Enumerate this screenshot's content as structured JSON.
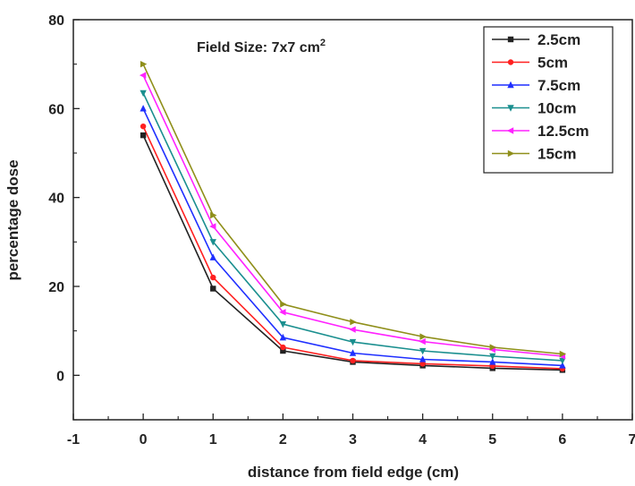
{
  "chart_data": {
    "type": "line",
    "annotation": {
      "text": "Field Size: 7x7 cm",
      "superscript": "2"
    },
    "xlabel": "distance from field edge (cm)",
    "ylabel": "percentage dose",
    "xlim": [
      -1,
      7
    ],
    "ylim": [
      -10,
      80
    ],
    "xticks": [
      -1,
      0,
      1,
      2,
      3,
      4,
      5,
      6,
      7
    ],
    "yticks": [
      0,
      20,
      40,
      60,
      80
    ],
    "grid": false,
    "legend_position": "top-right",
    "x": [
      0,
      1,
      2,
      3,
      4,
      5,
      6
    ],
    "series": [
      {
        "name": "2.5cm",
        "color": "#222222",
        "marker": "square",
        "values": [
          54,
          19.5,
          5.5,
          3.0,
          2.2,
          1.6,
          1.2
        ]
      },
      {
        "name": "5cm",
        "color": "#ff2020",
        "marker": "circle",
        "values": [
          56,
          22,
          6.3,
          3.3,
          2.6,
          2.1,
          1.5
        ]
      },
      {
        "name": "7.5cm",
        "color": "#1f2fff",
        "marker": "triangle-up",
        "values": [
          60,
          26.5,
          8.5,
          5.0,
          3.6,
          3.0,
          2.2
        ]
      },
      {
        "name": "10cm",
        "color": "#1a8f8f",
        "marker": "triangle-down",
        "values": [
          63.5,
          30,
          11.5,
          7.5,
          5.5,
          4.3,
          3.3
        ]
      },
      {
        "name": "12.5cm",
        "color": "#ff22ff",
        "marker": "triangle-left",
        "values": [
          67.5,
          33.5,
          14.2,
          10.3,
          7.6,
          5.8,
          4.3
        ]
      },
      {
        "name": "15cm",
        "color": "#8f8f1a",
        "marker": "triangle-right",
        "values": [
          70,
          36,
          16,
          12,
          8.7,
          6.3,
          4.8
        ]
      }
    ]
  }
}
